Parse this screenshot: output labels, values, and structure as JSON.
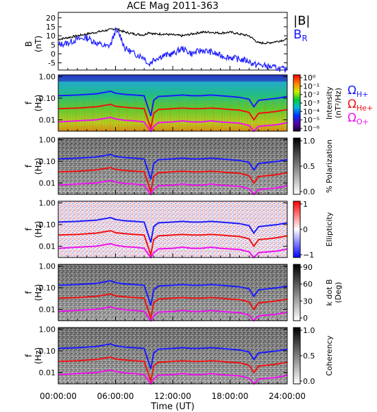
{
  "title": "ACE Mag 2011-363",
  "xlabel": "Time (UT)",
  "x_ticks": [
    "00:00:00",
    "06:00:00",
    "12:00:00",
    "18:00:00",
    "24:00:00"
  ],
  "panel1": {
    "ylabel_top": "B",
    "ylabel_bottom": "(nT)",
    "y_ticks": [
      "20",
      "15",
      "10",
      "5",
      "0",
      "-5"
    ],
    "legend_b": "|B|",
    "legend_br": "B",
    "legend_br_sub": "R",
    "colors": {
      "b": "#000000",
      "br": "#1a1aff"
    }
  },
  "freq_ticks": [
    "1.00",
    "0.10",
    "0.01"
  ],
  "freq_label_top": "f",
  "freq_label_bottom": "(Hz)",
  "gyro_legend": [
    {
      "main": "Ω",
      "sub": "H+",
      "color": "#1a1aff"
    },
    {
      "main": "Ω",
      "sub": "He+",
      "color": "#ee1111"
    },
    {
      "main": "Ω",
      "sub": "O+",
      "color": "#ee11ee"
    }
  ],
  "spectrogram_panels": [
    {
      "label": "Intensity (nT²/Hz)",
      "label_line1": "Intensity",
      "label_line2": "(nT²/Hz)",
      "cbar_ticks": [
        "10⁰",
        "10⁻¹",
        "10⁻²",
        "10⁻³",
        "10⁻⁴",
        "10⁻⁵",
        "10⁻⁶"
      ],
      "colormap": "rainbow"
    },
    {
      "label": "% Polarization",
      "label_line1": "% Polarization",
      "label_line2": "",
      "cbar_ticks": [
        "1.0",
        "0.5",
        "0.0"
      ],
      "colormap": "gray"
    },
    {
      "label": "Ellipticity",
      "label_line1": "Ellipticity",
      "label_line2": "",
      "cbar_ticks": [
        "1",
        "0",
        "−1"
      ],
      "colormap": "bwr"
    },
    {
      "label": "k dot B (Deg)",
      "label_line1": "k dot B",
      "label_line2": "(Deg)",
      "cbar_ticks": [
        "90",
        "60",
        "30",
        "0"
      ],
      "colormap": "gray"
    },
    {
      "label": "Coherency",
      "label_line1": "Coherency",
      "label_line2": "",
      "cbar_ticks": [
        "1.0",
        "0.5",
        "0.0"
      ],
      "colormap": "gray"
    }
  ],
  "chart_data": {
    "type": "line",
    "title": "ACE Mag 2011-363",
    "xlabel": "Time (UT)",
    "x_unit": "hours UT",
    "xlim": [
      0,
      24
    ],
    "magnetic_field": {
      "ylabel": "B (nT)",
      "ylim": [
        -9,
        23
      ],
      "x": [
        0,
        1,
        2,
        3,
        4,
        5,
        5.5,
        6,
        6.5,
        7,
        8,
        9,
        9.5,
        10,
        11,
        12,
        13,
        14,
        15,
        16,
        17,
        18,
        19,
        20,
        20.5,
        21,
        22,
        23,
        24
      ],
      "series": [
        {
          "name": "|B|",
          "values": [
            8,
            9,
            10,
            11,
            12,
            13,
            13.5,
            14,
            13,
            12,
            11,
            10.5,
            12,
            11,
            11,
            10.5,
            10,
            11,
            12,
            12,
            11.5,
            12,
            11,
            10,
            8,
            6,
            6,
            7,
            8
          ]
        },
        {
          "name": "BR",
          "values": [
            5,
            6,
            8,
            9,
            6,
            4,
            5,
            13,
            10,
            3,
            0,
            -2,
            -6,
            -3,
            -1,
            0,
            3,
            0,
            2,
            1,
            -1,
            -2,
            -3,
            -4,
            -6,
            -6,
            -7,
            -8,
            -9
          ]
        }
      ]
    },
    "gyrofrequency": {
      "ylabel": "f (Hz)",
      "yscale": "log",
      "ylim": [
        0.003,
        1.2
      ],
      "x": [
        0,
        2,
        4,
        5.5,
        6,
        7,
        8,
        9,
        9.7,
        10,
        10.5,
        12,
        13,
        14,
        15,
        16,
        17,
        18,
        19,
        20,
        20.5,
        21,
        22,
        23,
        24
      ],
      "series": [
        {
          "name": "ΩH+",
          "values": [
            0.13,
            0.14,
            0.16,
            0.21,
            0.17,
            0.15,
            0.14,
            0.13,
            0.015,
            0.08,
            0.12,
            0.13,
            0.14,
            0.13,
            0.13,
            0.14,
            0.13,
            0.12,
            0.11,
            0.09,
            0.04,
            0.08,
            0.09,
            0.1,
            0.12
          ]
        },
        {
          "name": "ΩHe+",
          "values": [
            0.033,
            0.035,
            0.04,
            0.052,
            0.042,
            0.038,
            0.035,
            0.033,
            0.004,
            0.02,
            0.03,
            0.033,
            0.035,
            0.033,
            0.033,
            0.035,
            0.033,
            0.03,
            0.028,
            0.022,
            0.01,
            0.02,
            0.022,
            0.025,
            0.03
          ]
        },
        {
          "name": "ΩO+",
          "values": [
            0.008,
            0.009,
            0.01,
            0.013,
            0.011,
            0.0095,
            0.009,
            0.008,
            0.001,
            0.005,
            0.0075,
            0.008,
            0.009,
            0.008,
            0.008,
            0.009,
            0.008,
            0.0075,
            0.007,
            0.0055,
            0.0025,
            0.005,
            0.0055,
            0.006,
            0.0075
          ]
        }
      ]
    }
  }
}
